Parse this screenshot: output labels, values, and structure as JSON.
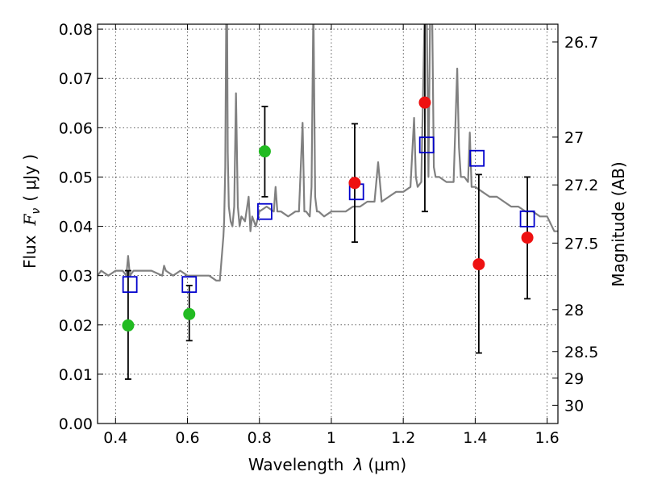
{
  "chart_data": {
    "type": "scatter",
    "xlabel": "Wavelength",
    "xlabel_symbol": "λ",
    "xlabel_unit": "(μm)",
    "ylabel": "Flux",
    "ylabel_symbol": "F",
    "ylabel_subscript": "ν",
    "ylabel_unit": "( μJy )",
    "y2label": "Magnitude (AB)",
    "xlim": [
      0.35,
      1.63
    ],
    "ylim": [
      0.0,
      0.081
    ],
    "grid": true,
    "legend": "none",
    "x_ticks": [
      {
        "value": 0.4,
        "label": "0.4"
      },
      {
        "value": 0.6,
        "label": "0.6"
      },
      {
        "value": 0.8,
        "label": "0.8"
      },
      {
        "value": 1.0,
        "label": "1"
      },
      {
        "value": 1.2,
        "label": "1.2"
      },
      {
        "value": 1.4,
        "label": "1.4"
      },
      {
        "value": 1.6,
        "label": "1.6"
      }
    ],
    "y_ticks": [
      {
        "value": 0.0,
        "label": "0.00"
      },
      {
        "value": 0.01,
        "label": "0.01"
      },
      {
        "value": 0.02,
        "label": "0.02"
      },
      {
        "value": 0.03,
        "label": "0.03"
      },
      {
        "value": 0.04,
        "label": "0.04"
      },
      {
        "value": 0.05,
        "label": "0.05"
      },
      {
        "value": 0.06,
        "label": "0.06"
      },
      {
        "value": 0.07,
        "label": "0.07"
      },
      {
        "value": 0.08,
        "label": "0.08"
      }
    ],
    "y2_ticks": [
      {
        "flux": 0.0774,
        "label": "26.7"
      },
      {
        "flux": 0.0581,
        "label": "27"
      },
      {
        "flux": 0.0484,
        "label": "27.2"
      },
      {
        "flux": 0.0366,
        "label": "27.5"
      },
      {
        "flux": 0.0231,
        "label": "28"
      },
      {
        "flux": 0.0146,
        "label": "28.5"
      },
      {
        "flux": 0.0092,
        "label": "29"
      },
      {
        "flux": 0.0037,
        "label": "30"
      }
    ],
    "series": [
      {
        "kind": "line",
        "color": "#808080",
        "x": [
          0.35,
          0.36,
          0.38,
          0.4,
          0.42,
          0.43,
          0.435,
          0.44,
          0.45,
          0.48,
          0.5,
          0.53,
          0.535,
          0.54,
          0.56,
          0.58,
          0.6,
          0.62,
          0.64,
          0.66,
          0.68,
          0.69,
          0.7,
          0.702,
          0.705,
          0.708,
          0.71,
          0.712,
          0.715,
          0.72,
          0.725,
          0.73,
          0.735,
          0.74,
          0.745,
          0.75,
          0.76,
          0.77,
          0.775,
          0.78,
          0.79,
          0.8,
          0.82,
          0.84,
          0.845,
          0.85,
          0.86,
          0.88,
          0.9,
          0.91,
          0.92,
          0.925,
          0.93,
          0.94,
          0.945,
          0.95,
          0.955,
          0.96,
          0.965,
          0.98,
          1.0,
          1.02,
          1.04,
          1.06,
          1.08,
          1.1,
          1.12,
          1.13,
          1.14,
          1.16,
          1.18,
          1.2,
          1.22,
          1.23,
          1.235,
          1.24,
          1.25,
          1.26,
          1.265,
          1.27,
          1.275,
          1.28,
          1.285,
          1.29,
          1.3,
          1.32,
          1.34,
          1.35,
          1.355,
          1.36,
          1.37,
          1.38,
          1.385,
          1.39,
          1.4,
          1.42,
          1.44,
          1.46,
          1.48,
          1.5,
          1.52,
          1.54,
          1.56,
          1.58,
          1.6,
          1.62,
          1.63
        ],
        "y": [
          0.03,
          0.031,
          0.03,
          0.031,
          0.031,
          0.03,
          0.034,
          0.03,
          0.031,
          0.031,
          0.031,
          0.03,
          0.032,
          0.031,
          0.03,
          0.031,
          0.03,
          0.03,
          0.03,
          0.03,
          0.029,
          0.029,
          0.038,
          0.041,
          0.052,
          0.085,
          0.085,
          0.055,
          0.044,
          0.041,
          0.04,
          0.044,
          0.067,
          0.044,
          0.04,
          0.042,
          0.041,
          0.046,
          0.039,
          0.042,
          0.04,
          0.043,
          0.044,
          0.043,
          0.048,
          0.043,
          0.043,
          0.042,
          0.043,
          0.043,
          0.061,
          0.043,
          0.043,
          0.042,
          0.048,
          0.085,
          0.046,
          0.043,
          0.043,
          0.042,
          0.043,
          0.043,
          0.043,
          0.044,
          0.044,
          0.045,
          0.045,
          0.053,
          0.045,
          0.046,
          0.047,
          0.047,
          0.048,
          0.062,
          0.05,
          0.048,
          0.049,
          0.085,
          0.085,
          0.05,
          0.085,
          0.085,
          0.052,
          0.05,
          0.05,
          0.049,
          0.049,
          0.072,
          0.056,
          0.05,
          0.05,
          0.049,
          0.059,
          0.048,
          0.048,
          0.047,
          0.046,
          0.046,
          0.045,
          0.044,
          0.044,
          0.043,
          0.043,
          0.042,
          0.042,
          0.039,
          0.039
        ]
      },
      {
        "kind": "open-square",
        "color": "#0000cc",
        "x": [
          0.44,
          0.605,
          0.815,
          1.07,
          1.265,
          1.405,
          1.545
        ],
        "y": [
          0.0282,
          0.0282,
          0.043,
          0.047,
          0.0565,
          0.0538,
          0.0415
        ]
      },
      {
        "kind": "points-with-error",
        "color": "#22bb22",
        "x": [
          0.435,
          0.605,
          0.815
        ],
        "y": [
          0.0199,
          0.0222,
          0.0552
        ],
        "err_low": [
          0.009,
          0.0168,
          0.046
        ],
        "err_high": [
          0.031,
          0.028,
          0.0643
        ]
      },
      {
        "kind": "points-with-error",
        "color": "#ee1111",
        "x": [
          1.065,
          1.26,
          1.41,
          1.545
        ],
        "y": [
          0.0488,
          0.0651,
          0.0323,
          0.0377
        ],
        "err_low": [
          0.0368,
          0.043,
          0.0143,
          0.0253
        ],
        "err_high": [
          0.0608,
          0.085,
          0.0505,
          0.05
        ]
      }
    ]
  }
}
